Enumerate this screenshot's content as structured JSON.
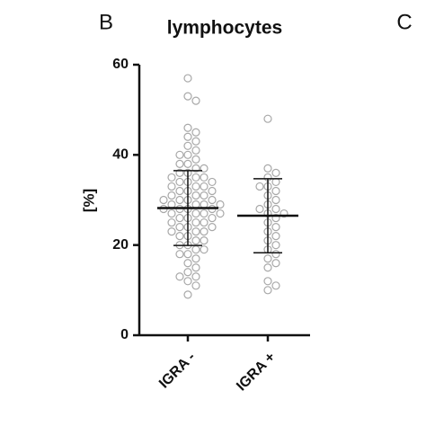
{
  "panel_labels": [
    "B",
    "C"
  ],
  "chart_data": {
    "type": "strip",
    "title": "lymphocytes",
    "y_label": "[%]",
    "ylim": [
      0,
      60
    ],
    "yticks": [
      0,
      20,
      40,
      60
    ],
    "point_color": "#a8a8a8",
    "summary_color": "#111111",
    "groups": [
      {
        "name": "IGRA -",
        "mean": 28.2,
        "sd": 8.3,
        "values": [
          57,
          53,
          52,
          46,
          45,
          44,
          43,
          42,
          41,
          40,
          40,
          39,
          38,
          38,
          37,
          37,
          36,
          36,
          35,
          35,
          35,
          34,
          34,
          34,
          33,
          33,
          33,
          32,
          32,
          32,
          31,
          31,
          31,
          30,
          30,
          30,
          30,
          29,
          29,
          29,
          29,
          28,
          28,
          28,
          28,
          27,
          27,
          27,
          27,
          26,
          26,
          26,
          25,
          25,
          25,
          24,
          24,
          24,
          23,
          23,
          23,
          22,
          22,
          21,
          21,
          20,
          20,
          19,
          19,
          18,
          18,
          17,
          16,
          15,
          14,
          13,
          13,
          12,
          11,
          9
        ]
      },
      {
        "name": "IGRA +",
        "mean": 26.5,
        "sd": 8.2,
        "values": [
          48,
          37,
          36,
          35,
          34,
          33,
          33,
          32,
          31,
          30,
          29,
          28,
          28,
          27,
          27,
          26,
          25,
          24,
          23,
          22,
          21,
          20,
          19,
          18,
          17,
          16,
          15,
          12,
          11,
          10
        ]
      }
    ]
  }
}
